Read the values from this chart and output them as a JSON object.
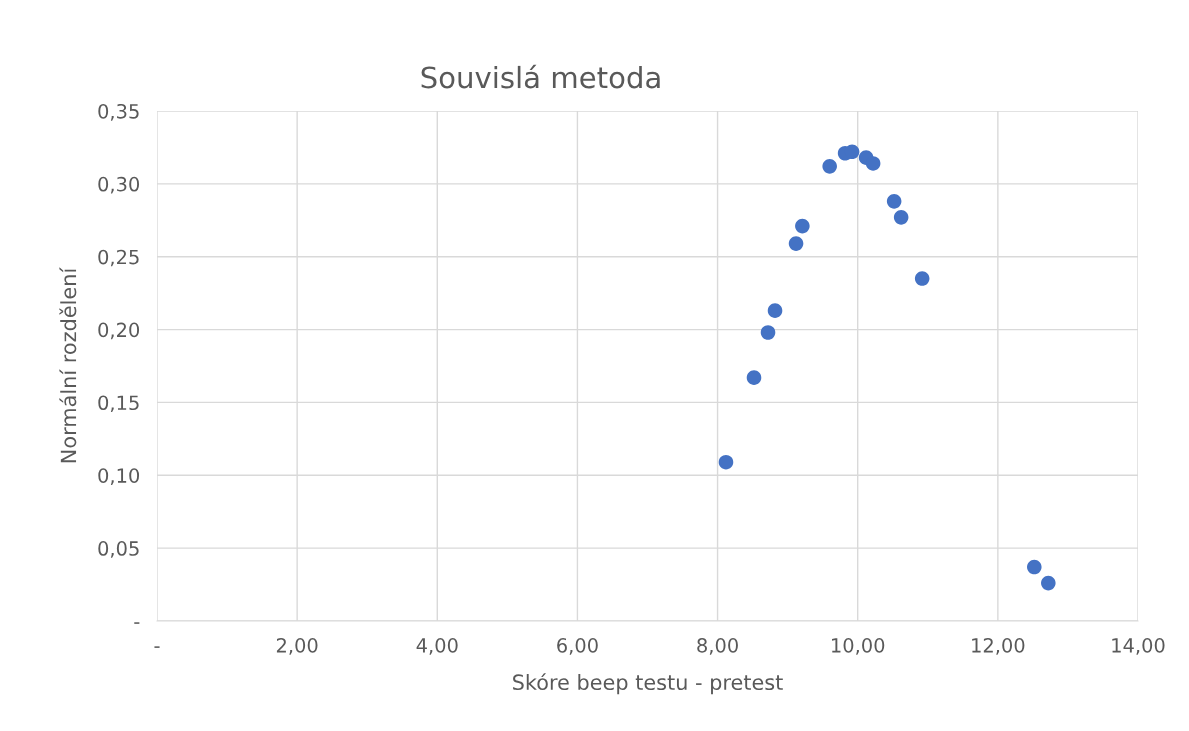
{
  "chart_data": {
    "type": "scatter",
    "title": "Souvislá metoda",
    "xlabel": "Skóre beep testu - pretest",
    "ylabel": "Normální rozdělení",
    "x": [
      8.12,
      8.52,
      8.72,
      8.82,
      9.12,
      9.21,
      9.6,
      9.82,
      9.92,
      10.12,
      10.22,
      10.52,
      10.62,
      10.92,
      12.52,
      12.72
    ],
    "series": [
      {
        "color": "#4472c4",
        "values": [
          0.109,
          0.167,
          0.198,
          0.213,
          0.259,
          0.271,
          0.312,
          0.321,
          0.322,
          0.318,
          0.314,
          0.288,
          0.277,
          0.235,
          0.037,
          0.026
        ]
      }
    ],
    "xlim": [
      0,
      14
    ],
    "ylim": [
      0,
      0.35
    ],
    "xticks": [
      {
        "value": 0,
        "label": "-"
      },
      {
        "value": 2,
        "label": "2,00"
      },
      {
        "value": 4,
        "label": "4,00"
      },
      {
        "value": 6,
        "label": "6,00"
      },
      {
        "value": 8,
        "label": "8,00"
      },
      {
        "value": 10,
        "label": "10,00"
      },
      {
        "value": 12,
        "label": "12,00"
      },
      {
        "value": 14,
        "label": "14,00"
      }
    ],
    "yticks": [
      {
        "value": 0,
        "label": "-"
      },
      {
        "value": 0.05,
        "label": "0,05"
      },
      {
        "value": 0.1,
        "label": "0,10"
      },
      {
        "value": 0.15,
        "label": "0,15"
      },
      {
        "value": 0.2,
        "label": "0,20"
      },
      {
        "value": 0.25,
        "label": "0,25"
      },
      {
        "value": 0.3,
        "label": "0,30"
      },
      {
        "value": 0.35,
        "label": "0,35"
      }
    ],
    "grid": true,
    "marker": "circle",
    "legend": false
  }
}
